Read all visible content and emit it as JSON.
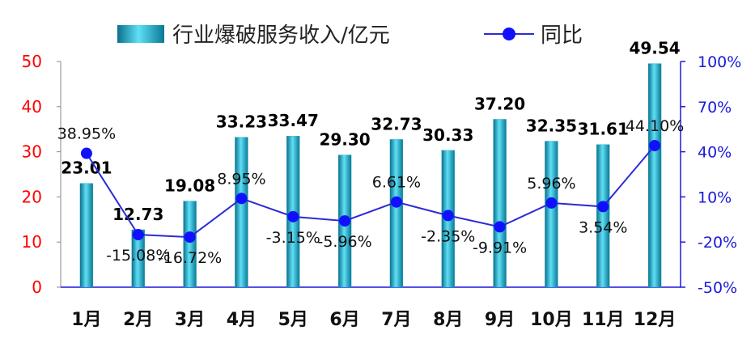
{
  "chart_data": {
    "type": "bar+line",
    "categories": [
      "1月",
      "2月",
      "3月",
      "4月",
      "5月",
      "6月",
      "7月",
      "8月",
      "9月",
      "10月",
      "11月",
      "12月"
    ],
    "series": [
      {
        "name": "行业爆破服务收入/亿元",
        "type": "bar",
        "axis": "left",
        "values": [
          23.01,
          12.73,
          19.08,
          33.23,
          33.47,
          29.3,
          32.73,
          30.33,
          37.2,
          32.35,
          31.61,
          49.54
        ],
        "labels": [
          "23.01",
          "12.73",
          "19.08",
          "33.23",
          "33.47",
          "29.30",
          "32.73",
          "30.33",
          "37.20",
          "32.35",
          "31.61",
          "49.54"
        ]
      },
      {
        "name": "同比",
        "type": "line",
        "axis": "right",
        "values": [
          38.95,
          -15.08,
          -16.72,
          8.95,
          -3.15,
          -5.96,
          6.61,
          -2.35,
          -9.91,
          5.96,
          3.54,
          44.1
        ],
        "labels": [
          "38.95%",
          "-15.08%",
          "-16.72%",
          "8.95%",
          "-3.15%",
          "-5.96%",
          "6.61%",
          "-2.35%",
          "-9.91%",
          "5.96%",
          "3.54%",
          "44.10%"
        ]
      }
    ],
    "y_left": {
      "ylim": [
        0,
        50
      ],
      "ticks": [
        "0",
        "10",
        "20",
        "30",
        "40",
        "50"
      ],
      "color": "#ff0000"
    },
    "y_right": {
      "ylim": [
        -50,
        100
      ],
      "ticks": [
        "-50%",
        "-20%",
        "10%",
        "40%",
        "70%",
        "100%"
      ],
      "color": "#1a1adb"
    },
    "legend": {
      "position": "top"
    },
    "grid": false
  },
  "colors": {
    "bar": "#1aa3c4",
    "line": "#2b2bd6",
    "marker": "#1010ff"
  }
}
